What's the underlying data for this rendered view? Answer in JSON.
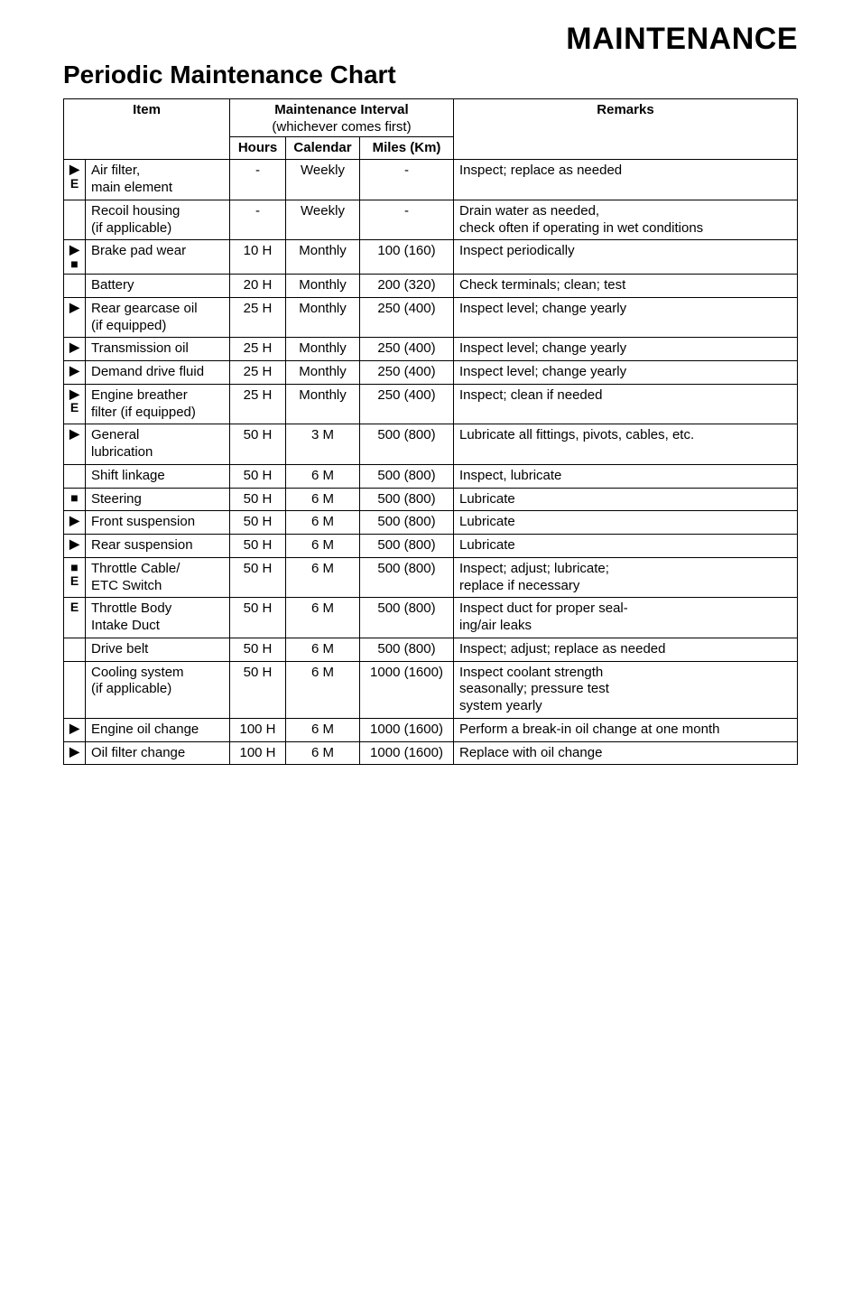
{
  "titles": {
    "main": "MAINTENANCE",
    "sub": "Periodic Maintenance Chart"
  },
  "headers": {
    "item": "Item",
    "interval": "Maintenance Interval",
    "interval_sub": "(whichever comes first)",
    "hours": "Hours",
    "calendar": "Calendar",
    "miles": "Miles (Km)",
    "remarks": "Remarks"
  },
  "rows": [
    {
      "sym": [
        "▶",
        "E"
      ],
      "item": "Air filter,\nmain element",
      "hours": "-",
      "cal": "Weekly",
      "miles": "-",
      "remarks": "Inspect; replace as needed"
    },
    {
      "sym": [],
      "item": "Recoil housing\n(if applicable)",
      "hours": "-",
      "cal": "Weekly",
      "miles": "-",
      "remarks": "Drain water as needed,\ncheck often if operating in wet conditions"
    },
    {
      "sym": [
        "▶",
        "■"
      ],
      "item": "Brake pad wear",
      "hours": "10 H",
      "cal": "Monthly",
      "miles": "100 (160)",
      "remarks": "Inspect periodically"
    },
    {
      "sym": [],
      "item": "Battery",
      "hours": "20 H",
      "cal": "Monthly",
      "miles": "200 (320)",
      "remarks": "Check terminals; clean; test"
    },
    {
      "sym": [
        "▶"
      ],
      "item": "Rear gearcase oil\n(if equipped)",
      "hours": "25 H",
      "cal": "Monthly",
      "miles": "250 (400)",
      "remarks": "Inspect level; change yearly"
    },
    {
      "sym": [
        "▶"
      ],
      "item": "Transmission oil",
      "hours": "25 H",
      "cal": "Monthly",
      "miles": "250 (400)",
      "remarks": "Inspect level; change yearly"
    },
    {
      "sym": [
        "▶"
      ],
      "item": "Demand drive fluid",
      "hours": "25 H",
      "cal": "Monthly",
      "miles": "250 (400)",
      "remarks": "Inspect level; change yearly"
    },
    {
      "sym": [
        "▶",
        "E"
      ],
      "item": "Engine breather\nfilter (if equipped)",
      "hours": "25 H",
      "cal": "Monthly",
      "miles": "250 (400)",
      "remarks": "Inspect; clean if needed"
    },
    {
      "sym": [
        "▶"
      ],
      "item": "General\nlubrication",
      "hours": "50 H",
      "cal": "3 M",
      "miles": "500 (800)",
      "remarks": "Lubricate all fittings, pivots, cables, etc."
    },
    {
      "sym": [],
      "item": "Shift linkage",
      "hours": "50 H",
      "cal": "6 M",
      "miles": "500 (800)",
      "remarks": "Inspect, lubricate"
    },
    {
      "sym": [
        "■"
      ],
      "item": "Steering",
      "hours": "50 H",
      "cal": "6 M",
      "miles": "500 (800)",
      "remarks": "Lubricate"
    },
    {
      "sym": [
        "▶"
      ],
      "item": "Front suspension",
      "hours": "50 H",
      "cal": "6 M",
      "miles": "500 (800)",
      "remarks": "Lubricate"
    },
    {
      "sym": [
        "▶"
      ],
      "item": "Rear suspension",
      "hours": "50 H",
      "cal": "6 M",
      "miles": "500 (800)",
      "remarks": "Lubricate"
    },
    {
      "sym": [
        "■",
        "E"
      ],
      "item": "Throttle Cable/\nETC Switch",
      "hours": "50 H",
      "cal": "6 M",
      "miles": "500 (800)",
      "remarks": "Inspect; adjust; lubricate;\nreplace if necessary"
    },
    {
      "sym": [
        "E"
      ],
      "item": "Throttle Body\nIntake Duct",
      "hours": "50 H",
      "cal": "6 M",
      "miles": "500 (800)",
      "remarks": "Inspect duct for proper seal-\ning/air leaks"
    },
    {
      "sym": [],
      "item": "Drive belt",
      "hours": "50 H",
      "cal": "6 M",
      "miles": "500 (800)",
      "remarks": "Inspect; adjust; replace as needed"
    },
    {
      "sym": [],
      "item": "Cooling system\n(if applicable)",
      "hours": "50 H",
      "cal": "6 M",
      "miles": "1000 (1600)",
      "remarks": "Inspect coolant strength\nseasonally; pressure test\nsystem yearly"
    },
    {
      "sym": [
        "▶"
      ],
      "item": "Engine oil change",
      "hours": "100 H",
      "cal": "6 M",
      "miles": "1000 (1600)",
      "remarks": "Perform a break-in oil change at one month"
    },
    {
      "sym": [
        "▶"
      ],
      "item": "Oil filter change",
      "hours": "100 H",
      "cal": "6 M",
      "miles": "1000 (1600)",
      "remarks": "Replace with oil change"
    }
  ]
}
